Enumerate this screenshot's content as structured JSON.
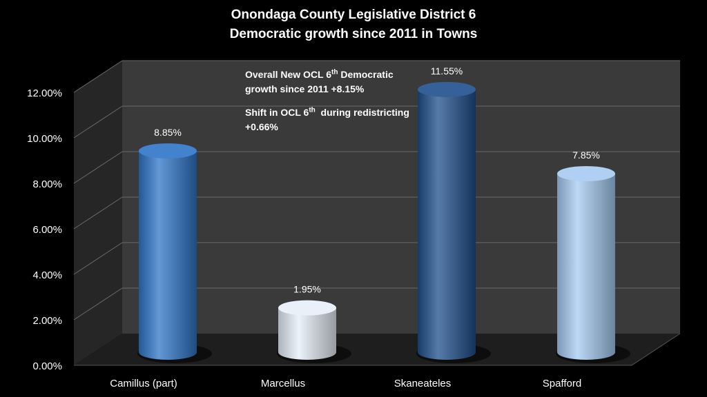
{
  "title": {
    "line1": "Onondaga County Legislative District 6",
    "line2": "Democratic growth since 2011 in Towns"
  },
  "annotation": {
    "p1_a": "Overall New OCL 6",
    "p1_sup": "th",
    "p1_b": "Democratic growth since 2011 +8.15%",
    "p2_a": "Shift in OCL 6",
    "p2_sup": "th",
    "p2_b": "during redistricting +0.66%"
  },
  "chart_data": {
    "type": "bar",
    "style": "3d-cylinder",
    "categories": [
      "Camillus (part)",
      "Marcellus",
      "Skaneateles",
      "Spafford"
    ],
    "values": [
      8.85,
      1.95,
      11.55,
      7.85
    ],
    "data_labels": [
      "8.85%",
      "1.95%",
      "11.55%",
      "7.85%"
    ],
    "bar_colors": [
      "#2e75c8",
      "#e6eef8",
      "#1f4f8c",
      "#a6cbf2"
    ],
    "ylim": [
      0,
      12
    ],
    "yticks": [
      0,
      2,
      4,
      6,
      8,
      10,
      12
    ],
    "ytick_labels": [
      "0.00%",
      "2.00%",
      "4.00%",
      "6.00%",
      "8.00%",
      "10.00%",
      "12.00%"
    ],
    "grid": true,
    "legend": "none"
  }
}
